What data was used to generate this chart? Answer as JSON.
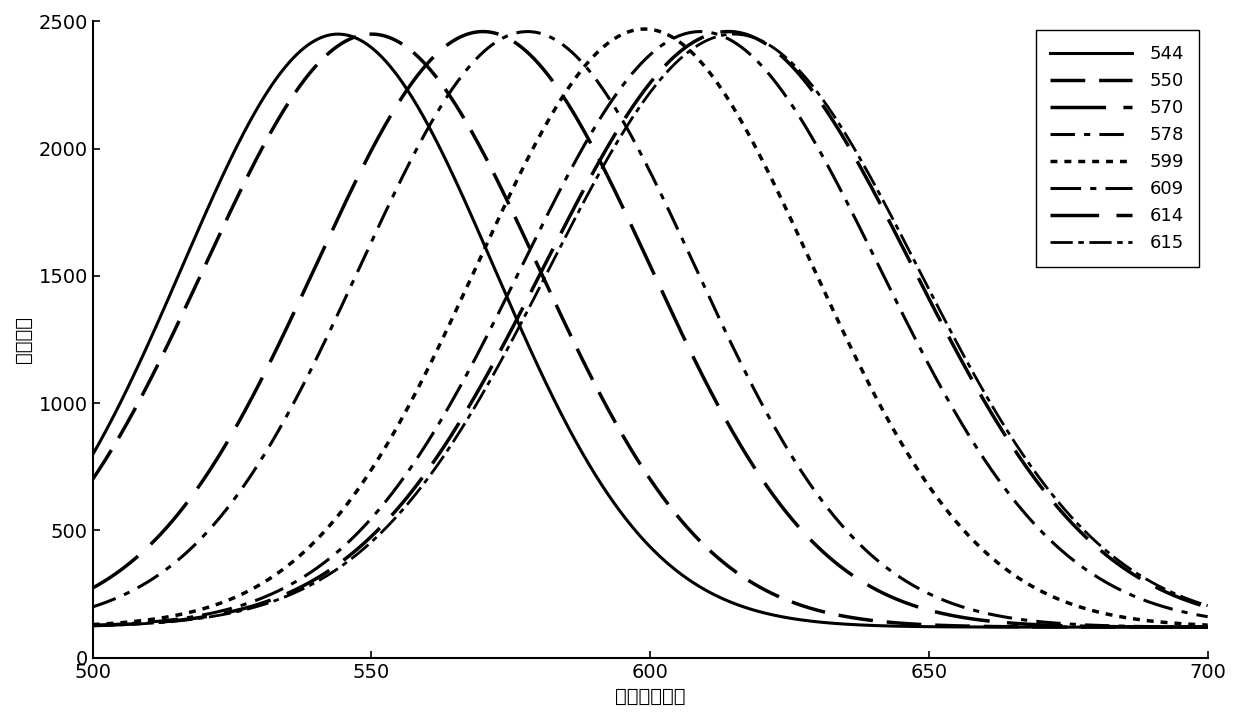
{
  "curves": [
    {
      "peak": 544,
      "amplitude": 2450,
      "sigma": 28,
      "label": "544"
    },
    {
      "peak": 550,
      "amplitude": 2450,
      "sigma": 30,
      "label": "550"
    },
    {
      "peak": 570,
      "amplitude": 2460,
      "sigma": 30,
      "label": "570"
    },
    {
      "peak": 578,
      "amplitude": 2460,
      "sigma": 30,
      "label": "578"
    },
    {
      "peak": 599,
      "amplitude": 2470,
      "sigma": 30,
      "label": "599"
    },
    {
      "peak": 609,
      "amplitude": 2460,
      "sigma": 32,
      "label": "609"
    },
    {
      "peak": 614,
      "amplitude": 2460,
      "sigma": 33,
      "label": "614"
    },
    {
      "peak": 615,
      "amplitude": 2450,
      "sigma": 33,
      "label": "615"
    }
  ],
  "base_level": 120,
  "xmin": 500,
  "xmax": 700,
  "ymin": 0,
  "ymax": 2500,
  "xticks": [
    500,
    550,
    600,
    650,
    700
  ],
  "yticks": [
    0,
    500,
    1000,
    1500,
    2000,
    2500
  ],
  "xlabel": "波长（纳米）",
  "ylabel": "荧光强度",
  "background_color": "#ffffff",
  "legend_loc": "upper right",
  "color": "#000000"
}
